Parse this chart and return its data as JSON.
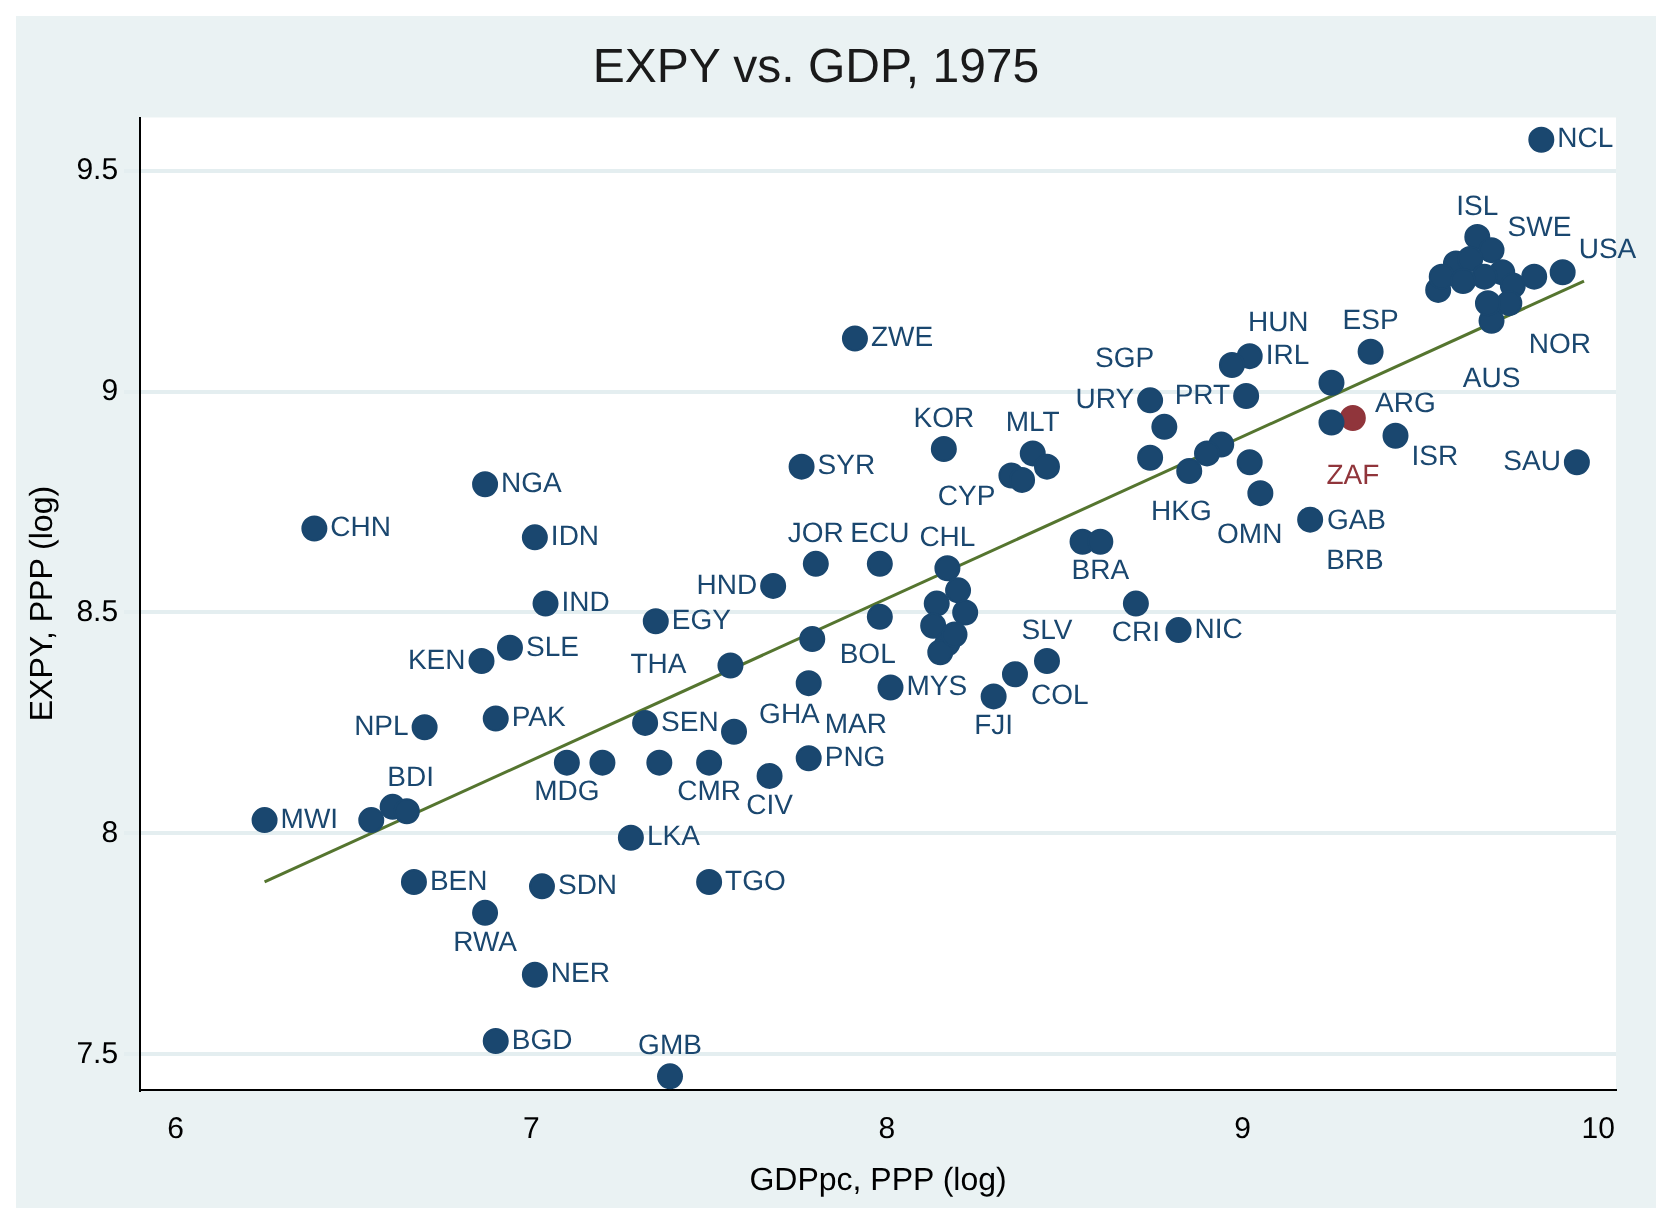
{
  "chart_data": {
    "type": "scatter",
    "title": "EXPY vs. GDP, 1975",
    "xlabel": "GDPpc, PPP (log)",
    "ylabel": "EXPY, PPP (log)",
    "xlim": [
      5.9,
      10.05
    ],
    "xticks": [
      6,
      7,
      8,
      9,
      10
    ],
    "ylim": [
      7.42,
      9.62
    ],
    "yticks": [
      7.5,
      8,
      8.5,
      9,
      9.5
    ],
    "grid": "y",
    "legend": false,
    "marker": "circle",
    "series": [
      {
        "type": "scatter",
        "color": "#1a476f",
        "x": [
          9.84,
          7.91,
          9.94,
          6.39,
          6.87,
          7.01,
          7.76,
          7.04,
          7.35,
          6.94,
          6.86,
          7.68,
          7.8,
          7.98,
          6.7,
          6.9,
          7.32,
          7.57,
          7.56,
          7.79,
          7.78,
          8.01,
          7.78,
          7.67,
          7.5,
          7.36,
          7.2,
          7.1,
          6.25,
          6.55,
          6.61,
          6.65,
          6.67,
          7.03,
          6.87,
          7.28,
          7.5,
          7.01,
          6.9,
          7.39,
          8.16,
          8.41,
          8.45,
          8.35,
          8.38,
          8.74,
          8.78,
          9.01,
          9.02,
          8.97,
          9.25,
          9.36,
          9.25,
          9.43,
          8.74,
          8.94,
          9.02,
          8.85,
          8.9,
          9.05,
          9.19,
          8.55,
          8.6,
          8.7,
          8.82,
          8.17,
          8.45,
          8.36,
          8.3,
          8.14,
          8.2,
          8.13,
          8.22,
          8.17,
          8.15,
          8.19,
          7.98,
          9.66,
          9.7,
          9.73,
          9.9,
          9.6,
          9.64,
          9.68,
          9.55,
          9.56,
          9.76,
          9.82,
          9.75,
          9.7,
          9.62,
          9.69
        ],
        "values": [
          9.57,
          9.12,
          8.84,
          8.69,
          8.79,
          8.67,
          8.83,
          8.52,
          8.48,
          8.42,
          8.39,
          8.56,
          8.61,
          8.61,
          8.24,
          8.26,
          8.25,
          8.23,
          8.38,
          8.44,
          8.34,
          8.33,
          8.17,
          8.13,
          8.16,
          8.16,
          8.16,
          8.16,
          8.03,
          8.03,
          8.06,
          8.05,
          7.89,
          7.88,
          7.82,
          7.99,
          7.89,
          7.68,
          7.53,
          7.45,
          8.87,
          8.86,
          8.83,
          8.81,
          8.8,
          8.98,
          8.92,
          8.99,
          9.08,
          9.06,
          9.02,
          9.09,
          8.93,
          8.9,
          8.85,
          8.88,
          8.84,
          8.82,
          8.86,
          8.77,
          8.71,
          8.66,
          8.66,
          8.52,
          8.46,
          8.6,
          8.39,
          8.36,
          8.31,
          8.52,
          8.55,
          8.47,
          8.5,
          8.43,
          8.41,
          8.45,
          8.49,
          9.35,
          9.32,
          9.27,
          9.27,
          9.29,
          9.3,
          9.26,
          9.23,
          9.26,
          9.24,
          9.26,
          9.2,
          9.16,
          9.25,
          9.2
        ]
      },
      {
        "type": "scatter",
        "color": "#90353b",
        "x": [
          9.31
        ],
        "values": [
          8.94
        ]
      },
      {
        "type": "line",
        "color": "#55752f",
        "x": [
          6.25,
          9.96
        ],
        "values": [
          7.89,
          9.25
        ],
        "marker": "none"
      }
    ],
    "annotations": [
      {
        "text": "NCL",
        "x": 9.84,
        "y": 9.57
      },
      {
        "text": "ZWE",
        "x": 7.91,
        "y": 9.12
      },
      {
        "text": "SAU",
        "x": 9.94,
        "y": 8.84
      },
      {
        "text": "CHN",
        "x": 6.39,
        "y": 8.69
      },
      {
        "text": "NGA",
        "x": 6.87,
        "y": 8.79
      },
      {
        "text": "IDN",
        "x": 7.01,
        "y": 8.67
      },
      {
        "text": "SYR",
        "x": 7.76,
        "y": 8.83
      },
      {
        "text": "IND",
        "x": 7.04,
        "y": 8.52
      },
      {
        "text": "EGY",
        "x": 7.35,
        "y": 8.48
      },
      {
        "text": "SLE",
        "x": 6.94,
        "y": 8.42
      },
      {
        "text": "KEN",
        "x": 6.86,
        "y": 8.39
      },
      {
        "text": "HND",
        "x": 7.68,
        "y": 8.56
      },
      {
        "text": "JOR",
        "x": 7.8,
        "y": 8.61
      },
      {
        "text": "ECU",
        "x": 7.98,
        "y": 8.61
      },
      {
        "text": "NPL",
        "x": 6.7,
        "y": 8.24
      },
      {
        "text": "PAK",
        "x": 6.9,
        "y": 8.26
      },
      {
        "text": "SEN",
        "x": 7.32,
        "y": 8.25
      },
      {
        "text": "GHA",
        "x": 7.57,
        "y": 8.23
      },
      {
        "text": "THA",
        "x": 7.56,
        "y": 8.38
      },
      {
        "text": "BOL",
        "x": 7.79,
        "y": 8.44
      },
      {
        "text": "MAR",
        "x": 7.78,
        "y": 8.34
      },
      {
        "text": "MYS",
        "x": 8.01,
        "y": 8.33
      },
      {
        "text": "PNG",
        "x": 7.78,
        "y": 8.17
      },
      {
        "text": "CIV",
        "x": 7.67,
        "y": 8.13
      },
      {
        "text": "CMR",
        "x": 7.5,
        "y": 8.16
      },
      {
        "text": "MDG",
        "x": 7.1,
        "y": 8.16
      },
      {
        "text": "MWI",
        "x": 6.25,
        "y": 8.03
      },
      {
        "text": "BDI",
        "x": 6.55,
        "y": 8.03
      },
      {
        "text": "BEN",
        "x": 6.67,
        "y": 7.89
      },
      {
        "text": "SDN",
        "x": 7.03,
        "y": 7.88
      },
      {
        "text": "RWA",
        "x": 6.87,
        "y": 7.82
      },
      {
        "text": "LKA",
        "x": 7.28,
        "y": 7.99
      },
      {
        "text": "TGO",
        "x": 7.5,
        "y": 7.89
      },
      {
        "text": "NER",
        "x": 7.01,
        "y": 7.68
      },
      {
        "text": "BGD",
        "x": 6.9,
        "y": 7.53
      },
      {
        "text": "GMB",
        "x": 7.39,
        "y": 7.45
      },
      {
        "text": "KOR",
        "x": 8.16,
        "y": 8.87
      },
      {
        "text": "MLT",
        "x": 8.41,
        "y": 8.86
      },
      {
        "text": "CYP",
        "x": 8.35,
        "y": 8.81
      },
      {
        "text": "URY",
        "x": 8.74,
        "y": 8.98
      },
      {
        "text": "SGP",
        "x": 8.78,
        "y": 8.92
      },
      {
        "text": "PRT",
        "x": 9.01,
        "y": 8.99
      },
      {
        "text": "IRL",
        "x": 9.02,
        "y": 9.08
      },
      {
        "text": "HUN",
        "x": 8.97,
        "y": 9.06
      },
      {
        "text": "ARG",
        "x": 9.25,
        "y": 9.02
      },
      {
        "text": "ESP",
        "x": 9.36,
        "y": 9.09
      },
      {
        "text": "ZAF",
        "x": 9.31,
        "y": 8.94
      },
      {
        "text": "ISR",
        "x": 9.43,
        "y": 8.9
      },
      {
        "text": "HKG",
        "x": 8.94,
        "y": 8.88
      },
      {
        "text": "OMN",
        "x": 9.02,
        "y": 8.84
      },
      {
        "text": "GAB",
        "x": 9.05,
        "y": 8.77
      },
      {
        "text": "BRB",
        "x": 9.19,
        "y": 8.71
      },
      {
        "text": "BRA",
        "x": 8.6,
        "y": 8.66
      },
      {
        "text": "CRI",
        "x": 8.7,
        "y": 8.52
      },
      {
        "text": "NIC",
        "x": 8.82,
        "y": 8.46
      },
      {
        "text": "CHL",
        "x": 8.17,
        "y": 8.6
      },
      {
        "text": "SLV",
        "x": 8.45,
        "y": 8.39
      },
      {
        "text": "COL",
        "x": 8.36,
        "y": 8.36
      },
      {
        "text": "FJI",
        "x": 8.3,
        "y": 8.31
      },
      {
        "text": "ISL",
        "x": 9.66,
        "y": 9.35
      },
      {
        "text": "SWE",
        "x": 9.7,
        "y": 9.32
      },
      {
        "text": "USA",
        "x": 9.9,
        "y": 9.27
      },
      {
        "text": "NOR",
        "x": 9.76,
        "y": 9.2
      },
      {
        "text": "AUS",
        "x": 9.7,
        "y": 9.16
      }
    ]
  }
}
